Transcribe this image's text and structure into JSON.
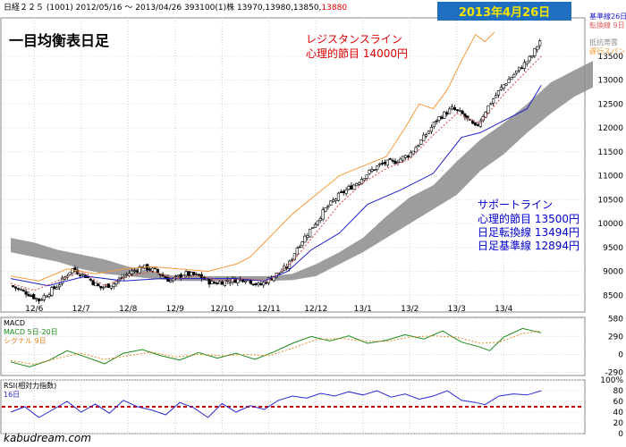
{
  "header": {
    "info": "日経２２５ (1001) 2012/05/16 ～ 2013/04/26 393100(1)株 13970,13980,13850,",
    "last_close": "13880",
    "date_badge": "2013年4月26日",
    "title": "一目均衡表日足"
  },
  "annotations": {
    "resistance_line1": "レジスタンスライン",
    "resistance_line2": "心理的節目 14000円",
    "support_line1": "サポートライン",
    "support_line2": "心理的節目 13500円",
    "support_line3": "日足転換線 13494円",
    "support_line4": "日足基準線 12894円"
  },
  "legend": {
    "kijun": "基準線26日",
    "tenkan": "転換線 9日",
    "senko": "抵抗帯雲",
    "chikou": "遅行スパン"
  },
  "watermark": "kabudream.com",
  "colors": {
    "candle": "#000000",
    "cloud": "#8c8c8c",
    "kijun": "#2020c8",
    "tenkan": "#e06060",
    "chikou": "#f59a3a",
    "macd": "#1a8a1a",
    "signal": "#e58a2a",
    "rsi": "#2a2ad0",
    "rsi_ref": "#cc0000",
    "accent_red": "#e00000",
    "accent_blue": "#0000cc"
  },
  "chart_data": [
    {
      "type": "candlestick",
      "title": "一目均衡表日足",
      "x_ticks": [
        "12/6",
        "12/7",
        "12/8",
        "12/9",
        "12/10",
        "12/11",
        "12/12",
        "13/1",
        "13/2",
        "13/3",
        "13/4"
      ],
      "ylim": [
        8150,
        14300
      ],
      "y_ticks": [
        8500,
        9000,
        9500,
        10000,
        10500,
        11000,
        11500,
        12000,
        12500,
        13000,
        13500
      ],
      "close_path": [
        [
          0,
          8700
        ],
        [
          0.35,
          8550
        ],
        [
          0.6,
          8400
        ],
        [
          1.0,
          8700
        ],
        [
          1.3,
          9050
        ],
        [
          1.6,
          8900
        ],
        [
          1.9,
          8650
        ],
        [
          2.2,
          8750
        ],
        [
          2.5,
          8950
        ],
        [
          2.8,
          9100
        ],
        [
          3.1,
          9000
        ],
        [
          3.4,
          8800
        ],
        [
          3.7,
          8950
        ],
        [
          4.0,
          8900
        ],
        [
          4.3,
          8750
        ],
        [
          4.6,
          8800
        ],
        [
          5.0,
          8850
        ],
        [
          5.3,
          8700
        ],
        [
          5.6,
          8900
        ],
        [
          5.9,
          9100
        ],
        [
          6.1,
          9500
        ],
        [
          6.4,
          9900
        ],
        [
          6.7,
          10300
        ],
        [
          7.0,
          10600
        ],
        [
          7.3,
          10800
        ],
        [
          7.6,
          11050
        ],
        [
          7.9,
          11250
        ],
        [
          8.2,
          11300
        ],
        [
          8.5,
          11450
        ],
        [
          8.8,
          11800
        ],
        [
          9.1,
          12200
        ],
        [
          9.4,
          12400
        ],
        [
          9.6,
          12300
        ],
        [
          9.9,
          12000
        ],
        [
          10.2,
          12500
        ],
        [
          10.5,
          12900
        ],
        [
          10.8,
          13200
        ],
        [
          11.1,
          13500
        ],
        [
          11.3,
          13880
        ]
      ],
      "kijun_path": [
        [
          0,
          8850
        ],
        [
          0.8,
          8700
        ],
        [
          1.6,
          8900
        ],
        [
          2.4,
          8800
        ],
        [
          3.2,
          8850
        ],
        [
          4.0,
          8850
        ],
        [
          4.8,
          8850
        ],
        [
          5.4,
          8800
        ],
        [
          5.9,
          9000
        ],
        [
          6.4,
          9450
        ],
        [
          7.0,
          9800
        ],
        [
          7.6,
          10400
        ],
        [
          8.3,
          10700
        ],
        [
          9.0,
          11050
        ],
        [
          9.6,
          11800
        ],
        [
          10.0,
          11900
        ],
        [
          10.4,
          12100
        ],
        [
          11.0,
          12400
        ],
        [
          11.3,
          12894
        ]
      ],
      "tenkan_path": [
        [
          0,
          8750
        ],
        [
          0.5,
          8600
        ],
        [
          1.0,
          8800
        ],
        [
          1.5,
          9000
        ],
        [
          2.0,
          8700
        ],
        [
          2.5,
          8900
        ],
        [
          3.0,
          9000
        ],
        [
          3.5,
          8850
        ],
        [
          4.0,
          8900
        ],
        [
          4.5,
          8800
        ],
        [
          5.0,
          8850
        ],
        [
          5.5,
          8800
        ],
        [
          6.0,
          9200
        ],
        [
          6.5,
          9800
        ],
        [
          7.0,
          10400
        ],
        [
          7.5,
          10850
        ],
        [
          8.0,
          11150
        ],
        [
          8.5,
          11350
        ],
        [
          9.0,
          11850
        ],
        [
          9.5,
          12300
        ],
        [
          10.0,
          12100
        ],
        [
          10.5,
          12700
        ],
        [
          11.0,
          13200
        ],
        [
          11.3,
          13494
        ]
      ],
      "chikou_path": [
        [
          0,
          8900
        ],
        [
          0.6,
          8800
        ],
        [
          1.2,
          9050
        ],
        [
          1.8,
          8950
        ],
        [
          2.4,
          9050
        ],
        [
          3.0,
          9100
        ],
        [
          3.6,
          9050
        ],
        [
          4.2,
          9000
        ],
        [
          4.8,
          9150
        ],
        [
          5.1,
          9300
        ],
        [
          5.5,
          9700
        ],
        [
          6.0,
          10200
        ],
        [
          6.5,
          10600
        ],
        [
          7.0,
          11000
        ],
        [
          7.5,
          11200
        ],
        [
          8.0,
          11400
        ],
        [
          8.4,
          12000
        ],
        [
          8.7,
          12500
        ],
        [
          9.0,
          12400
        ],
        [
          9.3,
          12800
        ],
        [
          9.6,
          13400
        ],
        [
          9.9,
          13950
        ],
        [
          10.1,
          13800
        ],
        [
          10.3,
          14000
        ]
      ],
      "cloud_upper": [
        [
          0,
          9700
        ],
        [
          0.5,
          9600
        ],
        [
          1.0,
          9450
        ],
        [
          1.5,
          9350
        ],
        [
          2.0,
          9250
        ],
        [
          2.5,
          9100
        ],
        [
          3.0,
          9000
        ],
        [
          3.5,
          8900
        ],
        [
          4.0,
          8900
        ],
        [
          4.5,
          8900
        ],
        [
          5.0,
          8900
        ],
        [
          5.5,
          8900
        ],
        [
          6.0,
          8950
        ],
        [
          6.5,
          9150
        ],
        [
          7.0,
          9400
        ],
        [
          7.5,
          9700
        ],
        [
          8.0,
          10150
        ],
        [
          8.5,
          10550
        ],
        [
          9.0,
          10800
        ],
        [
          9.5,
          11300
        ],
        [
          10.0,
          11750
        ],
        [
          10.5,
          12100
        ],
        [
          11.0,
          12500
        ],
        [
          11.5,
          12950
        ],
        [
          12.0,
          13200
        ],
        [
          12.4,
          13400
        ]
      ],
      "cloud_lower": [
        [
          0,
          9400
        ],
        [
          0.5,
          9300
        ],
        [
          1.0,
          9200
        ],
        [
          1.5,
          9050
        ],
        [
          2.0,
          8950
        ],
        [
          2.5,
          8900
        ],
        [
          3.0,
          8850
        ],
        [
          3.5,
          8800
        ],
        [
          4.0,
          8800
        ],
        [
          4.5,
          8800
        ],
        [
          5.0,
          8800
        ],
        [
          5.5,
          8800
        ],
        [
          6.0,
          8820
        ],
        [
          6.5,
          8900
        ],
        [
          7.0,
          9150
        ],
        [
          7.5,
          9400
        ],
        [
          8.0,
          9700
        ],
        [
          8.5,
          10000
        ],
        [
          9.0,
          10300
        ],
        [
          9.5,
          10600
        ],
        [
          10.0,
          11100
        ],
        [
          10.5,
          11450
        ],
        [
          11.0,
          11900
        ],
        [
          11.5,
          12300
        ],
        [
          12.0,
          12650
        ],
        [
          12.4,
          12850
        ]
      ]
    },
    {
      "type": "line",
      "title": "MACD",
      "series": [
        {
          "name": "MACD 5日-20日",
          "points": [
            [
              0,
              -120
            ],
            [
              0.4,
              -200
            ],
            [
              0.8,
              -100
            ],
            [
              1.2,
              60
            ],
            [
              1.6,
              -40
            ],
            [
              2.0,
              -150
            ],
            [
              2.4,
              20
            ],
            [
              2.8,
              80
            ],
            [
              3.2,
              -20
            ],
            [
              3.6,
              -90
            ],
            [
              4.0,
              30
            ],
            [
              4.4,
              -60
            ],
            [
              4.8,
              20
            ],
            [
              5.2,
              -80
            ],
            [
              5.6,
              40
            ],
            [
              6.0,
              180
            ],
            [
              6.4,
              290
            ],
            [
              6.8,
              220
            ],
            [
              7.2,
              300
            ],
            [
              7.6,
              180
            ],
            [
              8.0,
              230
            ],
            [
              8.4,
              320
            ],
            [
              8.8,
              250
            ],
            [
              9.2,
              380
            ],
            [
              9.6,
              200
            ],
            [
              10.0,
              120
            ],
            [
              10.2,
              60
            ],
            [
              10.5,
              280
            ],
            [
              10.9,
              420
            ],
            [
              11.3,
              350
            ]
          ]
        },
        {
          "name": "シグナル 9日",
          "points": [
            [
              0,
              -100
            ],
            [
              0.5,
              -160
            ],
            [
              1.0,
              -60
            ],
            [
              1.5,
              20
            ],
            [
              2.0,
              -80
            ],
            [
              2.5,
              -20
            ],
            [
              3.0,
              40
            ],
            [
              3.5,
              -40
            ],
            [
              4.0,
              0
            ],
            [
              4.5,
              -20
            ],
            [
              5.0,
              0
            ],
            [
              5.5,
              -20
            ],
            [
              6.0,
              100
            ],
            [
              6.5,
              240
            ],
            [
              7.0,
              260
            ],
            [
              7.5,
              220
            ],
            [
              8.0,
              210
            ],
            [
              8.5,
              280
            ],
            [
              9.0,
              300
            ],
            [
              9.5,
              280
            ],
            [
              10.0,
              180
            ],
            [
              10.4,
              200
            ],
            [
              10.9,
              340
            ],
            [
              11.3,
              380
            ]
          ]
        }
      ],
      "ylim": [
        -340,
        600
      ],
      "y_ticks": [
        -290,
        0,
        290,
        580
      ]
    },
    {
      "type": "line",
      "title": "RSI(相対力指数)",
      "series": [
        {
          "name": "16日",
          "points": [
            [
              0,
              40
            ],
            [
              0.3,
              50
            ],
            [
              0.6,
              30
            ],
            [
              0.9,
              45
            ],
            [
              1.2,
              60
            ],
            [
              1.5,
              40
            ],
            [
              1.8,
              55
            ],
            [
              2.1,
              38
            ],
            [
              2.4,
              62
            ],
            [
              2.7,
              50
            ],
            [
              3.0,
              44
            ],
            [
              3.3,
              35
            ],
            [
              3.6,
              58
            ],
            [
              3.9,
              48
            ],
            [
              4.2,
              30
            ],
            [
              4.5,
              56
            ],
            [
              4.8,
              40
            ],
            [
              5.1,
              52
            ],
            [
              5.4,
              45
            ],
            [
              5.7,
              62
            ],
            [
              6.0,
              70
            ],
            [
              6.3,
              66
            ],
            [
              6.6,
              75
            ],
            [
              6.9,
              70
            ],
            [
              7.2,
              78
            ],
            [
              7.5,
              72
            ],
            [
              7.8,
              80
            ],
            [
              8.1,
              68
            ],
            [
              8.4,
              74
            ],
            [
              8.7,
              64
            ],
            [
              9.0,
              70
            ],
            [
              9.3,
              80
            ],
            [
              9.6,
              62
            ],
            [
              9.9,
              58
            ],
            [
              10.1,
              54
            ],
            [
              10.4,
              70
            ],
            [
              10.7,
              74
            ],
            [
              11.0,
              72
            ],
            [
              11.3,
              80
            ]
          ]
        }
      ],
      "reference_line": 50,
      "ylim": [
        0,
        100
      ],
      "y_ticks": [
        0,
        20,
        40,
        60,
        80,
        100
      ],
      "y_tick_labels": [
        "0",
        "20",
        "40",
        "60",
        "80",
        "100%"
      ]
    }
  ]
}
